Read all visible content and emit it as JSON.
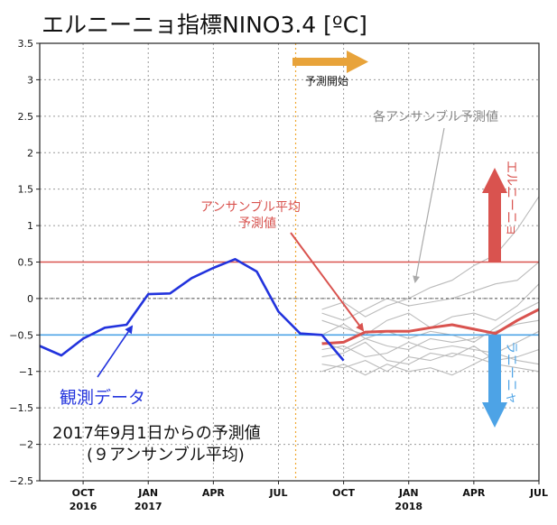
{
  "chart_data": {
    "type": "line",
    "title": "エルニーニョ指標NINO3.4 [ºC]",
    "xlabel": "",
    "ylabel": "",
    "ylim": [
      -2.5,
      3.5
    ],
    "xlim": [
      "2016-08",
      "2018-07"
    ],
    "grid": true,
    "y_ticks": [
      "3.5",
      "3",
      "2.5",
      "2",
      "1.5",
      "1",
      "0.5",
      "0",
      "−0.5",
      "−1",
      "−1.5",
      "−2",
      "−2.5"
    ],
    "x_ticks": [
      {
        "month": "2016-10",
        "label": "OCT",
        "year": "2016"
      },
      {
        "month": "2017-01",
        "label": "JAN",
        "year": "2017"
      },
      {
        "month": "2017-04",
        "label": "APR",
        "year": ""
      },
      {
        "month": "2017-07",
        "label": "JUL",
        "year": ""
      },
      {
        "month": "2017-10",
        "label": "OCT",
        "year": ""
      },
      {
        "month": "2018-01",
        "label": "JAN",
        "year": "2018"
      },
      {
        "month": "2018-04",
        "label": "APR",
        "year": ""
      },
      {
        "month": "2018-07",
        "label": "JUL",
        "year": ""
      }
    ],
    "reference_lines": [
      {
        "y": 0.5,
        "color": "#d9534f",
        "style": "solid"
      },
      {
        "y": 0,
        "color": "#555555",
        "style": "dashed"
      },
      {
        "y": -0.5,
        "color": "#4da3e6",
        "style": "solid"
      }
    ],
    "forecast_start": "2017-08",
    "observed": {
      "name": "観測データ",
      "color": "#2233dd",
      "x": [
        "2016-08",
        "2016-09",
        "2016-10",
        "2016-11",
        "2016-12",
        "2017-01",
        "2017-02",
        "2017-03",
        "2017-04",
        "2017-05",
        "2017-06",
        "2017-07",
        "2017-08",
        "2017-09",
        "2017-10"
      ],
      "values": [
        -0.65,
        -0.78,
        -0.55,
        -0.4,
        -0.36,
        0.06,
        0.07,
        0.28,
        0.42,
        0.54,
        0.37,
        -0.18,
        -0.48,
        -0.5,
        -0.85
      ]
    },
    "ensemble_mean": {
      "name": "アンサンブル平均 予測値",
      "color": "#d9534f",
      "x": [
        "2017-09",
        "2017-10",
        "2017-11",
        "2017-12",
        "2018-01",
        "2018-02",
        "2018-03",
        "2018-04",
        "2018-05",
        "2018-06",
        "2018-07"
      ],
      "values": [
        -0.62,
        -0.6,
        -0.46,
        -0.45,
        -0.45,
        -0.4,
        -0.36,
        -0.42,
        -0.48,
        -0.3,
        -0.15
      ]
    },
    "members": {
      "name": "各アンサンブル予測値",
      "color": "#bbbbbb",
      "x": [
        "2017-09",
        "2017-10",
        "2017-11",
        "2017-12",
        "2018-01",
        "2018-02",
        "2018-03",
        "2018-04",
        "2018-05",
        "2018-06",
        "2018-07"
      ],
      "series": [
        [
          -0.15,
          -0.05,
          -0.25,
          -0.1,
          0.0,
          0.15,
          0.25,
          0.45,
          0.6,
          0.95,
          1.4
        ],
        [
          -0.2,
          -0.3,
          -0.15,
          0.0,
          -0.1,
          -0.05,
          0.0,
          0.1,
          0.2,
          0.25,
          0.5
        ],
        [
          -0.3,
          -0.4,
          -0.5,
          -0.3,
          -0.2,
          -0.4,
          -0.25,
          -0.2,
          -0.3,
          -0.1,
          0.2
        ],
        [
          -0.5,
          -0.35,
          -0.55,
          -0.45,
          -0.55,
          -0.45,
          -0.5,
          -0.6,
          -0.4,
          -0.2,
          -0.05
        ],
        [
          -0.6,
          -0.7,
          -0.55,
          -0.65,
          -0.7,
          -0.55,
          -0.6,
          -0.55,
          -0.45,
          -0.35,
          -0.3
        ],
        [
          -0.7,
          -0.65,
          -0.8,
          -0.75,
          -0.6,
          -0.7,
          -0.65,
          -0.7,
          -0.75,
          -0.6,
          -0.45
        ],
        [
          -0.8,
          -0.75,
          -0.6,
          -0.85,
          -0.9,
          -0.75,
          -0.8,
          -0.65,
          -0.85,
          -0.8,
          -0.7
        ],
        [
          -0.9,
          -0.95,
          -0.85,
          -1.0,
          -0.8,
          -0.85,
          -0.75,
          -0.8,
          -0.9,
          -0.95,
          -1.0
        ],
        [
          -1.0,
          -0.9,
          -1.05,
          -0.9,
          -1.0,
          -0.95,
          -1.05,
          -0.9,
          -0.75,
          -0.85,
          -0.9
        ]
      ]
    },
    "annotations": {
      "forecast_start_label": "予測開始",
      "ensemble_mean_label_line1": "アンサンブル平均",
      "ensemble_mean_label_line2": "予測値",
      "members_label": "各アンサンブル予測値",
      "observed_label": "観測データ",
      "el_nino_label": "エルニーニョ",
      "la_nina_label": "ラニーニャ",
      "note_line1": "2017年9月1日からの予測値",
      "note_line2": "(９アンサンブル平均)"
    }
  },
  "colors": {
    "observed": "#2233dd",
    "ensemble_mean": "#d9534f",
    "members": "#bbbbbb",
    "el_nino": "#d9534f",
    "la_nina": "#4da3e6",
    "forecast_arrow": "#e8a33a",
    "forecast_line": "#f0a830"
  }
}
